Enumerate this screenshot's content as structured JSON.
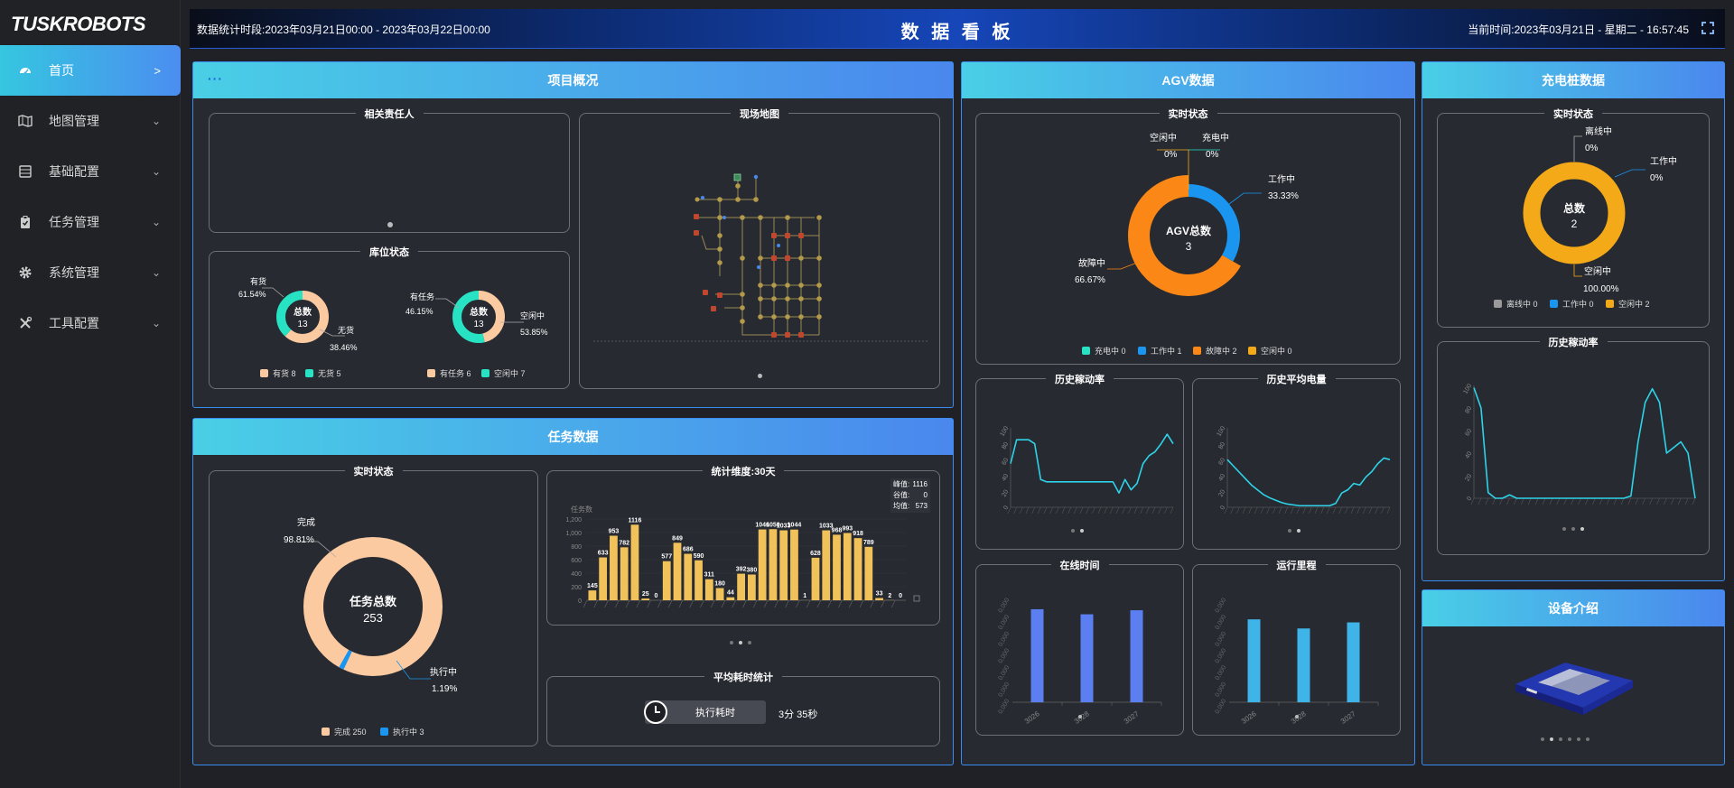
{
  "brand": {
    "logo": "TUSKROBOTS"
  },
  "sidebar": {
    "items": [
      {
        "label": "首页",
        "arrow": ">"
      },
      {
        "label": "地图管理",
        "arrow": "⌄"
      },
      {
        "label": "基础配置",
        "arrow": "⌄"
      },
      {
        "label": "任务管理",
        "arrow": "⌄"
      },
      {
        "label": "系统管理",
        "arrow": "⌄"
      },
      {
        "label": "工具配置",
        "arrow": "⌄"
      }
    ]
  },
  "header": {
    "range": "数据统计时段:2023年03月21日00:00 - 2023年03月22日00:00",
    "title": "数 据 看 板",
    "time": "当前时间:2023年03月21日 - 星期二 - 16:57:45"
  },
  "project": {
    "title": "项目概况",
    "dots": "···",
    "responsible_title": "相关责任人",
    "map_title": "现场地图",
    "storage_title": "库位状态",
    "stock_donut": {
      "center_label": "总数",
      "center_value": "13",
      "a_label": "有货",
      "a_pct": "61.54%",
      "b_label": "无货",
      "b_pct": "38.46%",
      "legend_a": "有货 8",
      "legend_b": "无货 5",
      "values": [
        8,
        5
      ]
    },
    "task_donut": {
      "center_label": "总数",
      "center_value": "13",
      "a_label": "有任务",
      "a_pct": "46.15%",
      "b_label": "空闲中",
      "b_pct": "53.85%",
      "legend_a": "有任务 6",
      "legend_b": "空闲中 7",
      "values": [
        6,
        7
      ]
    }
  },
  "agv": {
    "title": "AGV数据",
    "realtime_title": "实时状态",
    "center_label": "AGV总数",
    "center_value": "3",
    "labels": {
      "idle": "空闲中",
      "idle_pct": "0%",
      "charging": "充电中",
      "charging_pct": "0%",
      "working": "工作中",
      "working_pct": "33.33%",
      "fault": "故障中",
      "fault_pct": "66.67%"
    },
    "legend": [
      "充电中 0",
      "工作中 1",
      "故障中 2",
      "空闲中 0"
    ],
    "util_title": "历史稼动率",
    "battery_title": "历史平均电量",
    "online_title": "在线时间",
    "mileage_title": "运行里程"
  },
  "charger": {
    "title": "充电桩数据",
    "realtime_title": "实时状态",
    "center_label": "总数",
    "center_value": "2",
    "labels": {
      "offline": "离线中",
      "offline_pct": "0%",
      "working": "工作中",
      "working_pct": "0%",
      "idle": "空闲中",
      "idle_pct": "100.00%"
    },
    "legend": [
      "离线中 0",
      "工作中 0",
      "空闲中 2"
    ],
    "util_title": "历史稼动率"
  },
  "device": {
    "title": "设备介绍"
  },
  "tasks": {
    "title": "任务数据",
    "realtime_title": "实时状态",
    "center_label": "任务总数",
    "center_value": "253",
    "done_label": "完成",
    "done_pct": "98.81%",
    "running_label": "执行中",
    "running_pct": "1.19%",
    "legend": [
      "完成 250",
      "执行中 3"
    ],
    "stats_title": "统计维度:30天",
    "stats_info": {
      "peak_label": "峰值:",
      "peak": "1116",
      "low_label": "谷值:",
      "low": "0",
      "avg_label": "均值:",
      "avg": "573"
    },
    "avg_title": "平均耗时统计",
    "avg_button": "执行耗时",
    "avg_value": "3分 35秒"
  },
  "chart_data": [
    {
      "id": "daily-tasks",
      "type": "bar",
      "ylabel": "任务数",
      "ylim": [
        0,
        1200
      ],
      "yticks": [
        "0",
        "200",
        "400",
        "600",
        "800",
        "1,000",
        "1,200"
      ],
      "values": [
        145,
        633,
        953,
        782,
        1116,
        25,
        0,
        577,
        849,
        686,
        590,
        311,
        180,
        44,
        392,
        380,
        1046,
        1050,
        1033,
        1044,
        1,
        628,
        1033,
        968,
        993,
        918,
        789,
        33,
        2,
        0
      ],
      "color": "#f2c25a"
    },
    {
      "id": "agv-utilization",
      "type": "line",
      "ylim": [
        0,
        100
      ],
      "yticks": [
        "0",
        "20",
        "40",
        "60",
        "80",
        "100"
      ],
      "values": [
        55,
        85,
        85,
        85,
        80,
        35,
        32,
        32,
        32,
        32,
        32,
        32,
        32,
        32,
        32,
        32,
        32,
        32,
        18,
        35,
        22,
        30,
        55,
        65,
        70,
        80,
        92,
        80
      ],
      "color": "#2ed3e8"
    },
    {
      "id": "agv-battery",
      "type": "line",
      "ylim": [
        0,
        100
      ],
      "yticks": [
        "0",
        "20",
        "40",
        "60",
        "80",
        "100"
      ],
      "values": [
        60,
        52,
        44,
        36,
        28,
        22,
        16,
        12,
        9,
        6,
        4,
        3,
        2,
        2,
        2,
        2,
        2,
        2,
        5,
        18,
        22,
        30,
        28,
        38,
        45,
        55,
        62,
        60
      ],
      "color": "#2ed3e8"
    },
    {
      "id": "agv-online",
      "type": "bar",
      "categories": [
        "3026",
        "3028",
        "3027"
      ],
      "values": [
        0.92,
        0.87,
        0.91
      ],
      "color": "#5b7ff0"
    },
    {
      "id": "agv-mileage",
      "type": "bar",
      "categories": [
        "3026",
        "3028",
        "3027"
      ],
      "values": [
        0.82,
        0.73,
        0.79
      ],
      "color": "#3fb4e8"
    },
    {
      "id": "charger-utilization",
      "type": "line",
      "ylim": [
        0,
        100
      ],
      "yticks": [
        "0",
        "20",
        "40",
        "60",
        "80",
        "100"
      ],
      "values": [
        98,
        80,
        5,
        0,
        0,
        3,
        0,
        0,
        0,
        0,
        0,
        0,
        0,
        0,
        0,
        0,
        0,
        0,
        0,
        0,
        0,
        0,
        2,
        50,
        85,
        97,
        85,
        40,
        45,
        50,
        40,
        0
      ],
      "color": "#2ed3e8"
    }
  ],
  "colors": {
    "accent": "#4a87ee",
    "cyan": "#2ed3e8",
    "peach": "#fccaa0",
    "teal": "#27e2c3",
    "orange": "#fa8716",
    "blue": "#1a96f0",
    "gold": "#f4a918",
    "grey": "#9a9a9a"
  }
}
